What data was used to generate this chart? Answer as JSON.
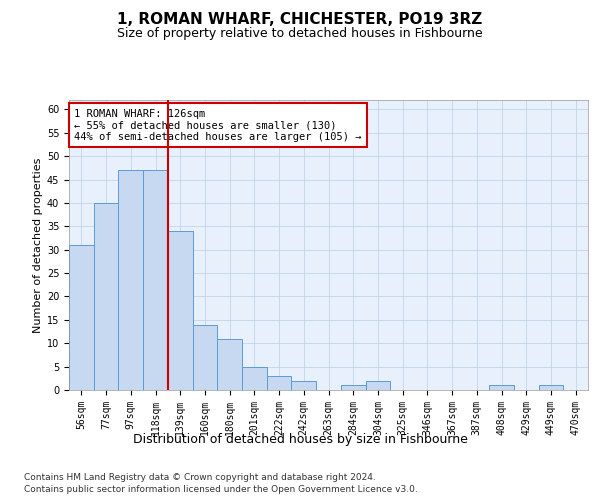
{
  "title1": "1, ROMAN WHARF, CHICHESTER, PO19 3RZ",
  "title2": "Size of property relative to detached houses in Fishbourne",
  "xlabel": "Distribution of detached houses by size in Fishbourne",
  "ylabel": "Number of detached properties",
  "bar_labels": [
    "56sqm",
    "77sqm",
    "97sqm",
    "118sqm",
    "139sqm",
    "160sqm",
    "180sqm",
    "201sqm",
    "222sqm",
    "242sqm",
    "263sqm",
    "284sqm",
    "304sqm",
    "325sqm",
    "346sqm",
    "367sqm",
    "387sqm",
    "408sqm",
    "429sqm",
    "449sqm",
    "470sqm"
  ],
  "bar_values": [
    31,
    40,
    47,
    47,
    34,
    14,
    11,
    5,
    3,
    2,
    0,
    1,
    2,
    0,
    0,
    0,
    0,
    1,
    0,
    1,
    0
  ],
  "bar_color": "#c6d9f1",
  "bar_edge_color": "#5b9bd5",
  "vline_x": 3.5,
  "vline_color": "#cc0000",
  "annotation_text": "1 ROMAN WHARF: 126sqm\n← 55% of detached houses are smaller (130)\n44% of semi-detached houses are larger (105) →",
  "annotation_box_color": "#ffffff",
  "annotation_box_edge_color": "#cc0000",
  "ylim": [
    0,
    62
  ],
  "yticks": [
    0,
    5,
    10,
    15,
    20,
    25,
    30,
    35,
    40,
    45,
    50,
    55,
    60
  ],
  "footer1": "Contains HM Land Registry data © Crown copyright and database right 2024.",
  "footer2": "Contains public sector information licensed under the Open Government Licence v3.0.",
  "plot_bg_color": "#e8f0fb",
  "title1_fontsize": 11,
  "title2_fontsize": 9,
  "xlabel_fontsize": 9,
  "ylabel_fontsize": 8,
  "tick_fontsize": 7,
  "annotation_fontsize": 7.5,
  "footer_fontsize": 6.5
}
